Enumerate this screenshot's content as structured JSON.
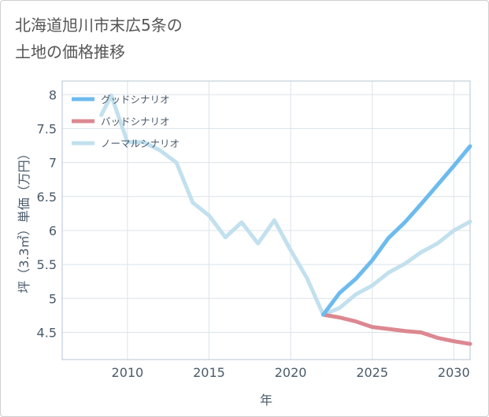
{
  "title": {
    "line1": "北海道旭川市末広5条の",
    "line2": "土地の価格推移"
  },
  "chart_data": {
    "type": "line",
    "xlabel": "年",
    "ylabel": "坪（3.3㎡）単価（万円）",
    "xlim": [
      2006,
      2031
    ],
    "ylim": [
      4.1,
      8.2
    ],
    "xticks": [
      2010,
      2015,
      2020,
      2025,
      2030
    ],
    "yticks": [
      4.5,
      5,
      5.5,
      6,
      6.5,
      7,
      7.5,
      8
    ],
    "xtick_labels": [
      "2010",
      "2015",
      "2020",
      "2025",
      "2030"
    ],
    "ytick_labels": [
      "4.5",
      "5",
      "5.5",
      "6",
      "6.5",
      "7",
      "7.5",
      "8"
    ],
    "grid": true,
    "legend_position": "top-left",
    "series": [
      {
        "name": "グッドシナリオ",
        "color": "#6dbbee",
        "x": [
          2022,
          2023,
          2024,
          2025,
          2026,
          2027,
          2028,
          2029,
          2030,
          2031
        ],
        "y": [
          4.76,
          5.08,
          5.29,
          5.56,
          5.89,
          6.12,
          6.39,
          6.67,
          6.95,
          7.24
        ]
      },
      {
        "name": "バッドシナリオ",
        "color": "#dc8891",
        "x": [
          2022,
          2023,
          2024,
          2025,
          2026,
          2027,
          2028,
          2029,
          2030,
          2031
        ],
        "y": [
          4.76,
          4.72,
          4.66,
          4.58,
          4.55,
          4.52,
          4.5,
          4.42,
          4.37,
          4.33
        ]
      },
      {
        "name": "ノーマルシナリオ",
        "color": "#c2e0ee",
        "x": [
          2008.4,
          2009,
          2010,
          2011,
          2012,
          2013,
          2014,
          2015,
          2016,
          2017,
          2018,
          2019,
          2020,
          2021,
          2022,
          2023,
          2024,
          2025,
          2026,
          2027,
          2028,
          2029,
          2030,
          2031
        ],
        "y": [
          7.7,
          7.99,
          7.3,
          7.3,
          7.18,
          7.0,
          6.41,
          6.22,
          5.9,
          6.12,
          5.81,
          6.15,
          5.71,
          5.3,
          4.76,
          4.86,
          5.06,
          5.19,
          5.38,
          5.51,
          5.68,
          5.81,
          6.0,
          6.13
        ]
      }
    ]
  }
}
